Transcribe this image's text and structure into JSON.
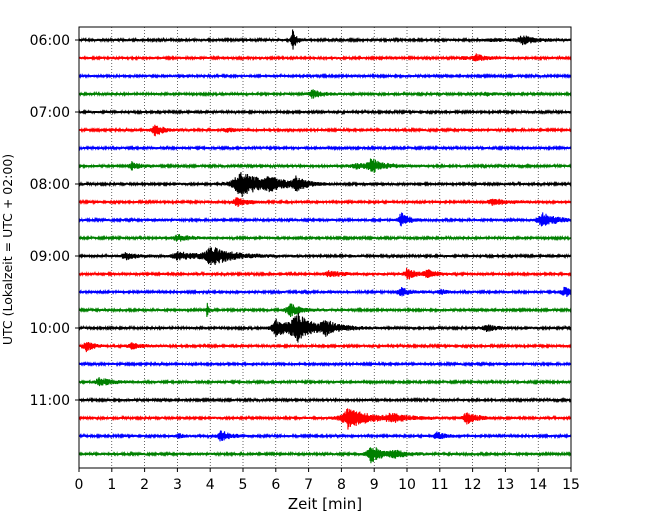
{
  "chart_data": {
    "type": "line",
    "xlabel": "Zeit  [min]",
    "ylabel": "UTC (Lokalzeit = UTC + 02:00)",
    "xlim": [
      0,
      15
    ],
    "xticks": [
      0,
      1,
      2,
      3,
      4,
      5,
      6,
      7,
      8,
      9,
      10,
      11,
      12,
      13,
      14,
      15
    ],
    "grid": "vertical dotted",
    "y_tick_labels": [
      "06:00",
      "07:00",
      "08:00",
      "09:00",
      "10:00",
      "11:00"
    ],
    "y_tick_rows": [
      0,
      4,
      8,
      12,
      16,
      20
    ],
    "trace_colors": [
      "#000000",
      "#ff0000",
      "#0000ff",
      "#008000"
    ],
    "trace_minutes_per_row": 15,
    "rows": [
      {
        "color": "#000000",
        "events": [
          [
            6.5,
            1.0,
            0.1
          ],
          [
            13.5,
            0.35,
            0.4
          ],
          [
            12.5,
            0.15,
            0.3
          ]
        ]
      },
      {
        "color": "#ff0000",
        "events": [
          [
            12.1,
            0.3,
            0.3
          ],
          [
            11.7,
            0.15,
            0.2
          ]
        ]
      },
      {
        "color": "#0000ff",
        "events": []
      },
      {
        "color": "#008000",
        "events": [
          [
            7.1,
            0.35,
            0.3
          ],
          [
            12.4,
            0.15,
            0.2
          ]
        ]
      },
      {
        "color": "#000000",
        "events": []
      },
      {
        "color": "#ff0000",
        "events": [
          [
            2.3,
            0.5,
            0.25
          ],
          [
            4.5,
            0.15,
            0.3
          ]
        ]
      },
      {
        "color": "#0000ff",
        "events": []
      },
      {
        "color": "#008000",
        "events": [
          [
            1.6,
            0.35,
            0.25
          ],
          [
            8.9,
            0.6,
            0.35
          ],
          [
            8.4,
            0.2,
            0.4
          ]
        ]
      },
      {
        "color": "#000000",
        "events": [
          [
            4.9,
            1.2,
            0.6
          ],
          [
            6.6,
            0.5,
            0.3
          ],
          [
            5.8,
            0.4,
            0.5
          ]
        ]
      },
      {
        "color": "#ff0000",
        "events": [
          [
            4.8,
            0.4,
            0.3
          ],
          [
            12.6,
            0.3,
            0.4
          ]
        ]
      },
      {
        "color": "#0000ff",
        "events": [
          [
            9.8,
            0.7,
            0.2
          ],
          [
            14.1,
            0.6,
            0.4
          ]
        ]
      },
      {
        "color": "#008000",
        "events": [
          [
            3.0,
            0.25,
            0.4
          ]
        ]
      },
      {
        "color": "#000000",
        "events": [
          [
            1.4,
            0.3,
            0.3
          ],
          [
            4.0,
            0.8,
            0.6
          ],
          [
            3.0,
            0.35,
            0.5
          ]
        ]
      },
      {
        "color": "#ff0000",
        "events": [
          [
            7.6,
            0.25,
            0.4
          ],
          [
            10.0,
            0.5,
            0.25
          ],
          [
            10.6,
            0.3,
            0.3
          ]
        ]
      },
      {
        "color": "#0000ff",
        "events": [
          [
            9.8,
            0.4,
            0.25
          ],
          [
            11.0,
            0.2,
            0.2
          ],
          [
            14.8,
            0.4,
            0.3
          ]
        ]
      },
      {
        "color": "#008000",
        "events": [
          [
            3.9,
            0.7,
            0.05
          ],
          [
            6.4,
            0.6,
            0.3
          ]
        ]
      },
      {
        "color": "#000000",
        "events": [
          [
            6.6,
            1.3,
            0.4
          ],
          [
            6.0,
            0.7,
            0.4
          ],
          [
            7.5,
            0.5,
            0.5
          ],
          [
            12.4,
            0.3,
            0.3
          ]
        ]
      },
      {
        "color": "#ff0000",
        "events": [
          [
            0.2,
            0.5,
            0.2
          ],
          [
            1.6,
            0.25,
            0.3
          ]
        ]
      },
      {
        "color": "#0000ff",
        "events": []
      },
      {
        "color": "#008000",
        "events": [
          [
            0.6,
            0.35,
            0.35
          ]
        ]
      },
      {
        "color": "#000000",
        "events": []
      },
      {
        "color": "#ff0000",
        "events": [
          [
            8.2,
            0.9,
            0.6
          ],
          [
            11.8,
            0.5,
            0.3
          ],
          [
            9.5,
            0.3,
            0.5
          ]
        ]
      },
      {
        "color": "#0000ff",
        "events": [
          [
            4.3,
            0.5,
            0.25
          ],
          [
            10.9,
            0.3,
            0.25
          ],
          [
            3.0,
            0.2,
            0.2
          ]
        ]
      },
      {
        "color": "#008000",
        "events": [
          [
            8.9,
            0.7,
            0.35
          ],
          [
            9.6,
            0.25,
            0.4
          ]
        ]
      }
    ]
  }
}
